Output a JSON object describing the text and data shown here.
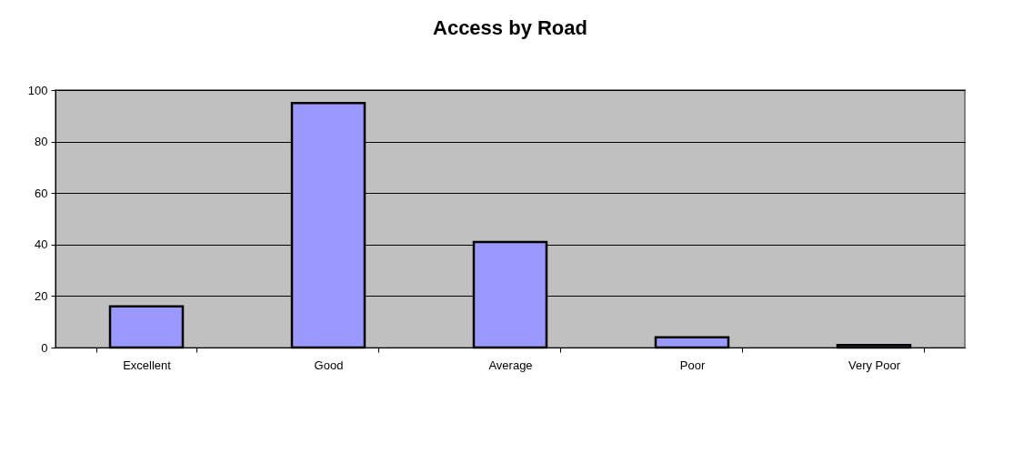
{
  "chart_data": {
    "type": "bar",
    "title": "Access by Road",
    "categories": [
      "Excellent",
      "Good",
      "Average",
      "Poor",
      "Very Poor"
    ],
    "values": [
      16,
      95,
      41,
      4,
      1
    ],
    "color": "#9999ff",
    "ylim": [
      0,
      100
    ],
    "yticks": [
      0,
      20,
      40,
      60,
      80,
      100
    ],
    "grid": "y"
  }
}
